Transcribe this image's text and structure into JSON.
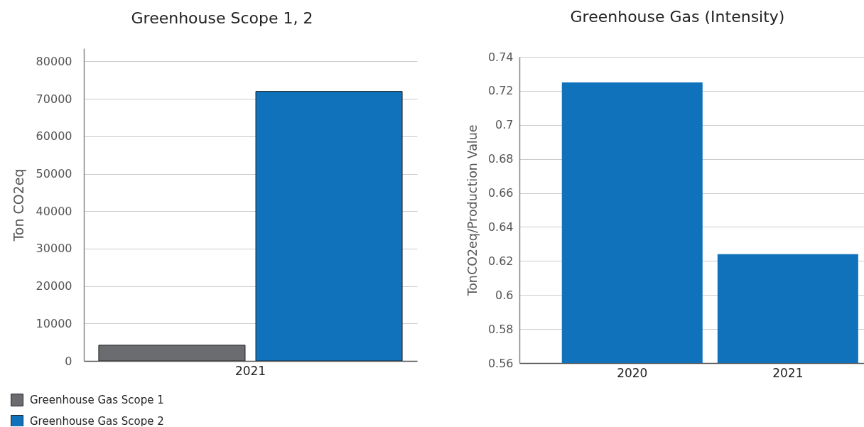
{
  "chart_data": [
    {
      "type": "bar",
      "title": "Greenhouse Scope 1, 2",
      "ylabel": "Ton CO2eq",
      "categories": [
        "2021"
      ],
      "series": [
        {
          "name": "Greenhouse Gas Scope 1",
          "color": "#6b6c70",
          "values": [
            4200
          ]
        },
        {
          "name": "Greenhouse Gas Scope 2",
          "color": "#1072bb",
          "values": [
            72000
          ]
        }
      ],
      "ylim": [
        0,
        83500
      ],
      "yticks": [
        0,
        10000,
        20000,
        30000,
        40000,
        50000,
        60000,
        70000,
        80000
      ],
      "grid": "y",
      "legend": "bottom left"
    },
    {
      "type": "bar",
      "title": "Greenhouse Gas (Intensity)",
      "ylabel": "TonCO2eq/Production Value",
      "categories": [
        "2020",
        "2021"
      ],
      "values": [
        0.725,
        0.624
      ],
      "color": "#1072bb",
      "ylim": [
        0.56,
        0.74
      ],
      "yticks": [
        0.56,
        0.58,
        0.6,
        0.62,
        0.64,
        0.66,
        0.68,
        0.7,
        0.72,
        0.74
      ],
      "grid": "y"
    }
  ]
}
